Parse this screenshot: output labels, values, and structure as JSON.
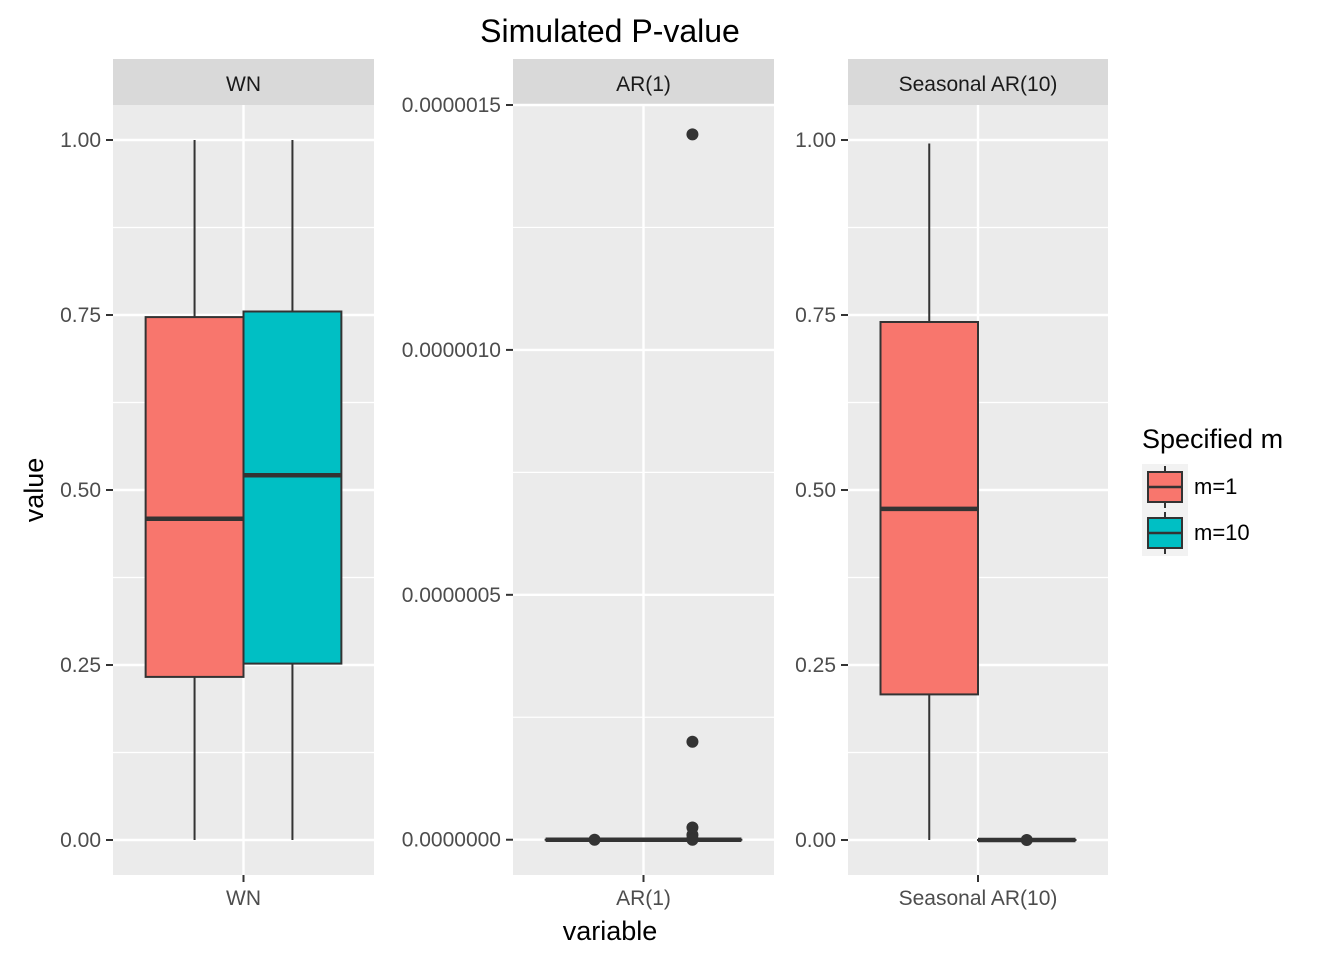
{
  "colors": {
    "panel_bg": "#EBEBEB",
    "strip_bg": "#D9D9D9",
    "grid": "#FFFFFF",
    "box_outline": "#333333",
    "tick_text": "#4D4D4D",
    "m1": "#F8766D",
    "m10": "#00BFC4"
  },
  "chart_data": {
    "type": "boxplot",
    "title": "Simulated P-value",
    "xlabel": "variable",
    "ylabel": "value",
    "legend": {
      "title": "Specified m",
      "position": "right",
      "entries": [
        {
          "label": "m=1",
          "color": "#F8766D"
        },
        {
          "label": "m=10",
          "color": "#00BFC4"
        }
      ]
    },
    "panels": [
      {
        "strip": "WN",
        "x_tick": "WN",
        "ylim": [
          -0.05,
          1.05
        ],
        "yticks": [
          0,
          0.25,
          0.5,
          0.75,
          1.0
        ],
        "ytick_labels": [
          "0.00",
          "0.25",
          "0.50",
          "0.75",
          "1.00"
        ],
        "boxes": [
          {
            "group": "m=1",
            "min": 0.0,
            "q1": 0.233,
            "median": 0.459,
            "q3": 0.747,
            "max": 1.0,
            "outliers": []
          },
          {
            "group": "m=10",
            "min": 0.0,
            "q1": 0.252,
            "median": 0.521,
            "q3": 0.755,
            "max": 1.0,
            "outliers": []
          }
        ]
      },
      {
        "strip": "AR(1)",
        "x_tick": "AR(1)",
        "ylim": [
          -7.2e-08,
          1.5e-06
        ],
        "yticks": [
          0,
          5e-07,
          1e-06,
          1.5e-06
        ],
        "ytick_labels": [
          "0.0000000",
          "0.0000005",
          "0.0000010",
          "0.0000015"
        ],
        "boxes": [
          {
            "group": "m=1",
            "min": 0.0,
            "q1": 0.0,
            "median": 0.0,
            "q3": 0.0,
            "max": 0.0,
            "outliers": [
              0.0
            ]
          },
          {
            "group": "m=10",
            "min": 0.0,
            "q1": 0.0,
            "median": 0.0,
            "q3": 0.0,
            "max": 0.0,
            "outliers": [
              1.44e-06,
              2e-07,
              2.5e-08,
              1e-08,
              2e-09,
              0.0
            ]
          }
        ]
      },
      {
        "strip": "Seasonal AR(10)",
        "x_tick": "Seasonal AR(10)",
        "ylim": [
          -0.05,
          1.05
        ],
        "yticks": [
          0,
          0.25,
          0.5,
          0.75,
          1.0
        ],
        "ytick_labels": [
          "0.00",
          "0.25",
          "0.50",
          "0.75",
          "1.00"
        ],
        "boxes": [
          {
            "group": "m=1",
            "min": 0.0,
            "q1": 0.208,
            "median": 0.473,
            "q3": 0.74,
            "max": 0.995,
            "outliers": []
          },
          {
            "group": "m=10",
            "min": 0.0,
            "q1": 0.0,
            "median": 0.0,
            "q3": 0.0,
            "max": 0.0,
            "outliers": [
              0.0
            ]
          }
        ]
      }
    ]
  }
}
